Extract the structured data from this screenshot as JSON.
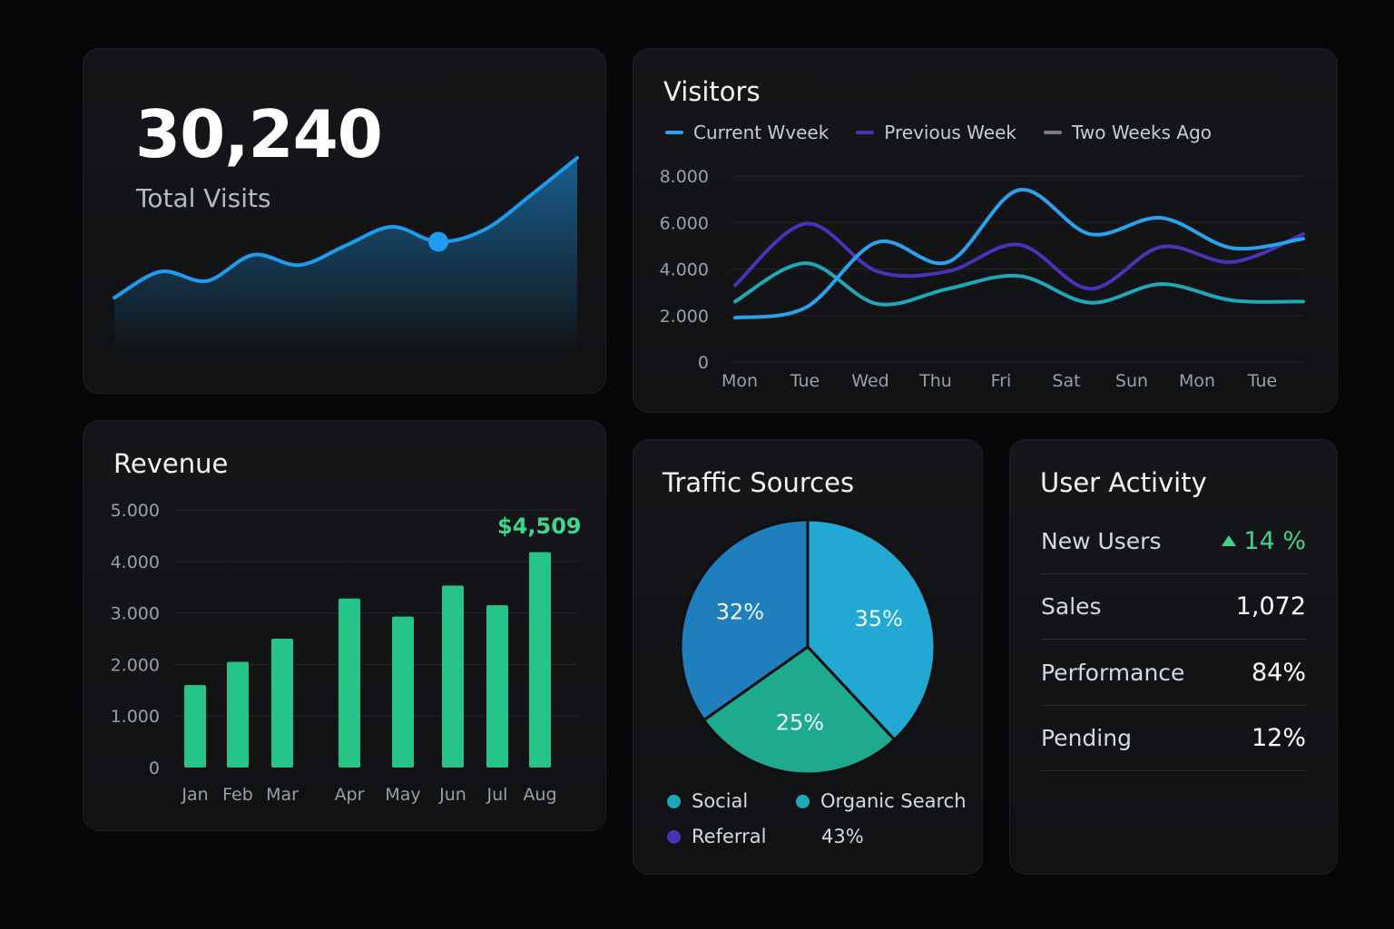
{
  "visits": {
    "value": "30,240",
    "label": "Total Visits"
  },
  "visitors": {
    "title": "Visitors",
    "legend": [
      {
        "label": "Current Wveek",
        "color": "#2aa3ee"
      },
      {
        "label": "Previous Week",
        "color": "#4b33b8"
      },
      {
        "label": "Two Weeks Ago",
        "color": "#7a7f86"
      }
    ]
  },
  "revenue": {
    "title": "Revenue",
    "highlight": "$4,509"
  },
  "traffic": {
    "title": "Traffic Sources",
    "legend": [
      {
        "label": "Social",
        "color": "#1fa9b8"
      },
      {
        "label": "Organic Search",
        "color": "#1fa9b8"
      },
      {
        "label": "Referral",
        "color": "#4b33b8"
      },
      {
        "label": "43%",
        "color": ""
      }
    ]
  },
  "activity": {
    "title": "User Activity",
    "rows": [
      {
        "label": "New Users",
        "value": "14 %",
        "trend": "up"
      },
      {
        "label": "Sales",
        "value": "1,072"
      },
      {
        "label": "Performance",
        "value": "84%"
      },
      {
        "label": "Pending",
        "value": "12%"
      }
    ]
  },
  "chart_data": [
    {
      "type": "area",
      "x": [
        1,
        2,
        3,
        4,
        5,
        6,
        7,
        8,
        9,
        10,
        11
      ],
      "values": [
        3000,
        5800,
        4800,
        7600,
        6500,
        8600,
        10600,
        9000,
        10300,
        14000,
        18000
      ],
      "highlight_index": 7,
      "colors": {
        "line": "#1e9cf0",
        "fill": "#1e9cf0"
      }
    },
    {
      "type": "line",
      "title": "Visitors",
      "categories": [
        "Mon",
        "Tue",
        "Wed",
        "Thu",
        "Fri",
        "Sat",
        "Sun",
        "Mon",
        "Tue"
      ],
      "yticks": [
        "0",
        "2.000",
        "4.000",
        "6.000",
        "8.000"
      ],
      "ylim": [
        0,
        8000
      ],
      "grid": true,
      "series": [
        {
          "name": "Current Wveek",
          "color": "#2aa3ee",
          "values": [
            1900,
            2350,
            5150,
            4300,
            7400,
            5500,
            6200,
            4900,
            5300
          ]
        },
        {
          "name": "Previous Week",
          "color": "#4b33b8",
          "values": [
            3300,
            5950,
            3900,
            3900,
            5050,
            3150,
            4950,
            4300,
            5500
          ]
        },
        {
          "name": "Two Weeks Ago",
          "color": "#1fa9b8",
          "values": [
            2600,
            4250,
            2500,
            3150,
            3700,
            2550,
            3350,
            2650,
            2600
          ]
        }
      ]
    },
    {
      "type": "bar",
      "title": "Revenue",
      "categories": [
        "Jan",
        "Feb",
        "Mar",
        "Apr",
        "May",
        "Jun",
        "Jul",
        "Aug"
      ],
      "values": [
        1600,
        2050,
        2500,
        3280,
        2930,
        3530,
        3150,
        4180
      ],
      "yticks": [
        "0",
        "1.000",
        "2.000",
        "3.000",
        "4.000",
        "5.000"
      ],
      "ylim": [
        0,
        5000
      ],
      "grid": true,
      "color": "#27c48a"
    },
    {
      "type": "pie",
      "title": "Traffic Sources",
      "slices": [
        {
          "label": "35%",
          "value": 35,
          "color": "#22a9d3"
        },
        {
          "label": "25%",
          "value": 25,
          "color": "#1eaa8f"
        },
        {
          "label": "32%",
          "value": 32,
          "color": "#1f7fbd"
        }
      ]
    }
  ]
}
